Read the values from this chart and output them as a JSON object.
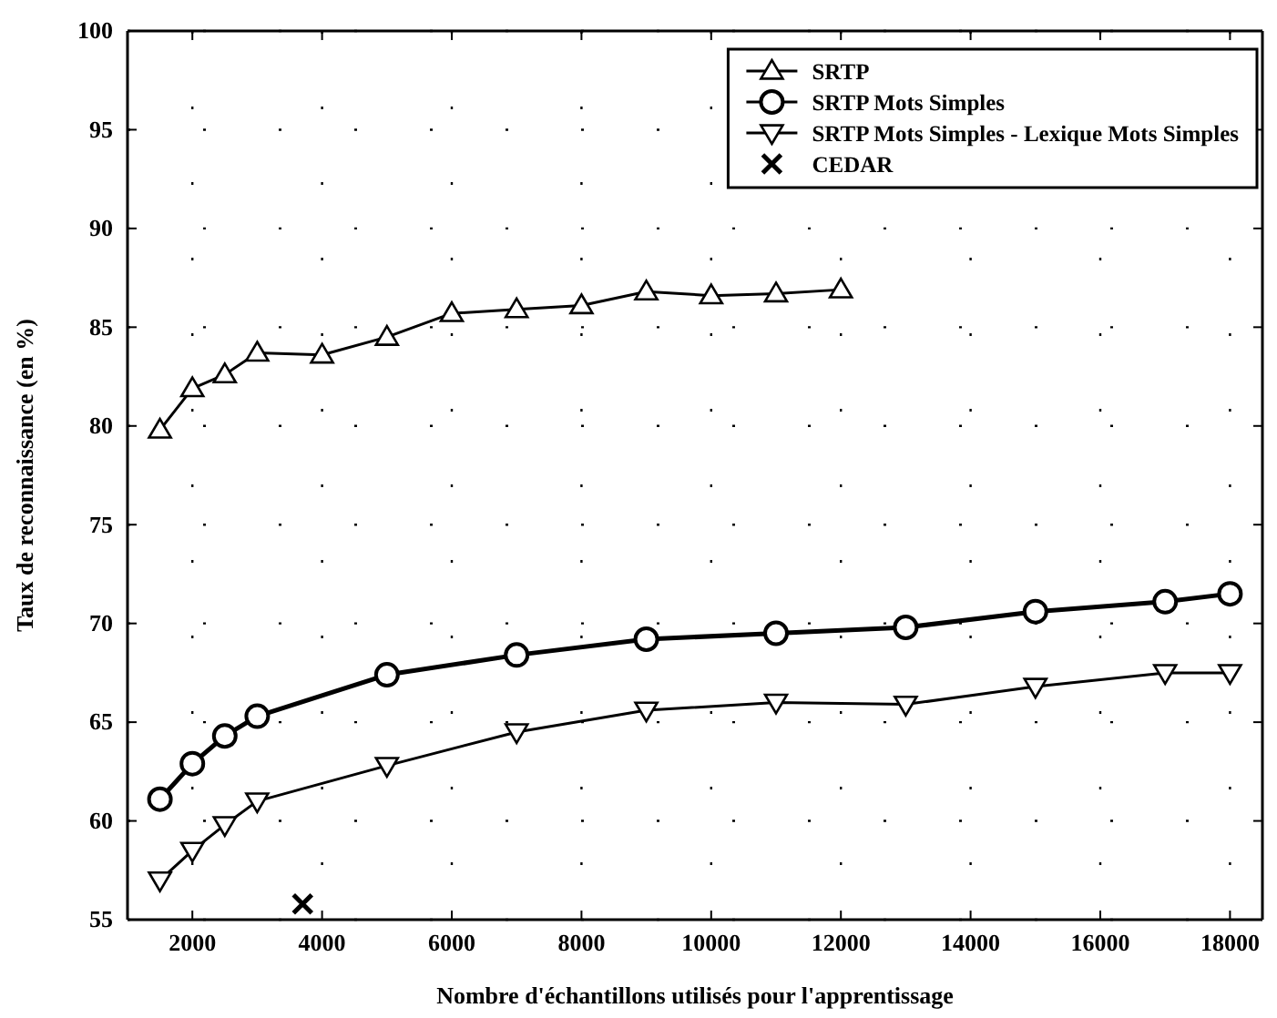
{
  "chart_data": {
    "type": "line",
    "xlabel": "Nombre d'échantillons utilisés pour l'apprentissage",
    "ylabel": "Taux de reconnaissance (en %)",
    "xlim": [
      1000,
      18500
    ],
    "xticks": [
      2000,
      4000,
      6000,
      8000,
      10000,
      12000,
      14000,
      16000,
      18000
    ],
    "ylim": [
      55,
      100
    ],
    "yticks": [
      55,
      60,
      65,
      70,
      75,
      80,
      85,
      90,
      95,
      100
    ],
    "grid": true,
    "legend": "top right",
    "series": [
      {
        "name": "SRTP",
        "color": "#000000",
        "marker": "triangle",
        "x": [
          1500,
          2000,
          2500,
          3000,
          4000,
          5000,
          6000,
          7000,
          8000,
          9000,
          10000,
          11000,
          12000
        ],
        "values": [
          79.8,
          81.9,
          82.6,
          83.7,
          83.6,
          84.5,
          85.7,
          85.9,
          86.1,
          86.8,
          86.6,
          86.7,
          86.9
        ]
      },
      {
        "name": "SRTP Mots Simples",
        "color": "#000000",
        "marker": "circle",
        "x": [
          1500,
          2000,
          2500,
          3000,
          5000,
          7000,
          9000,
          11000,
          13000,
          15000,
          17000,
          18000
        ],
        "values": [
          61.1,
          62.9,
          64.3,
          65.3,
          67.4,
          68.4,
          69.2,
          69.5,
          69.8,
          70.6,
          71.1,
          71.5
        ]
      },
      {
        "name": "SRTP Mots Simples - Lexique Mots Simples",
        "color": "#000000",
        "marker": "triangle-down",
        "x": [
          1500,
          2000,
          2500,
          3000,
          5000,
          7000,
          9000,
          11000,
          13000,
          15000,
          17000,
          18000
        ],
        "values": [
          57,
          58.5,
          59.8,
          61,
          62.8,
          64.5,
          65.6,
          66,
          65.9,
          66.8,
          67.5,
          67.5
        ]
      },
      {
        "name": "CEDAR",
        "type": "scatter",
        "color": "#000000",
        "marker": "cross",
        "x": [
          3700
        ],
        "values": [
          55.8
        ]
      }
    ]
  }
}
